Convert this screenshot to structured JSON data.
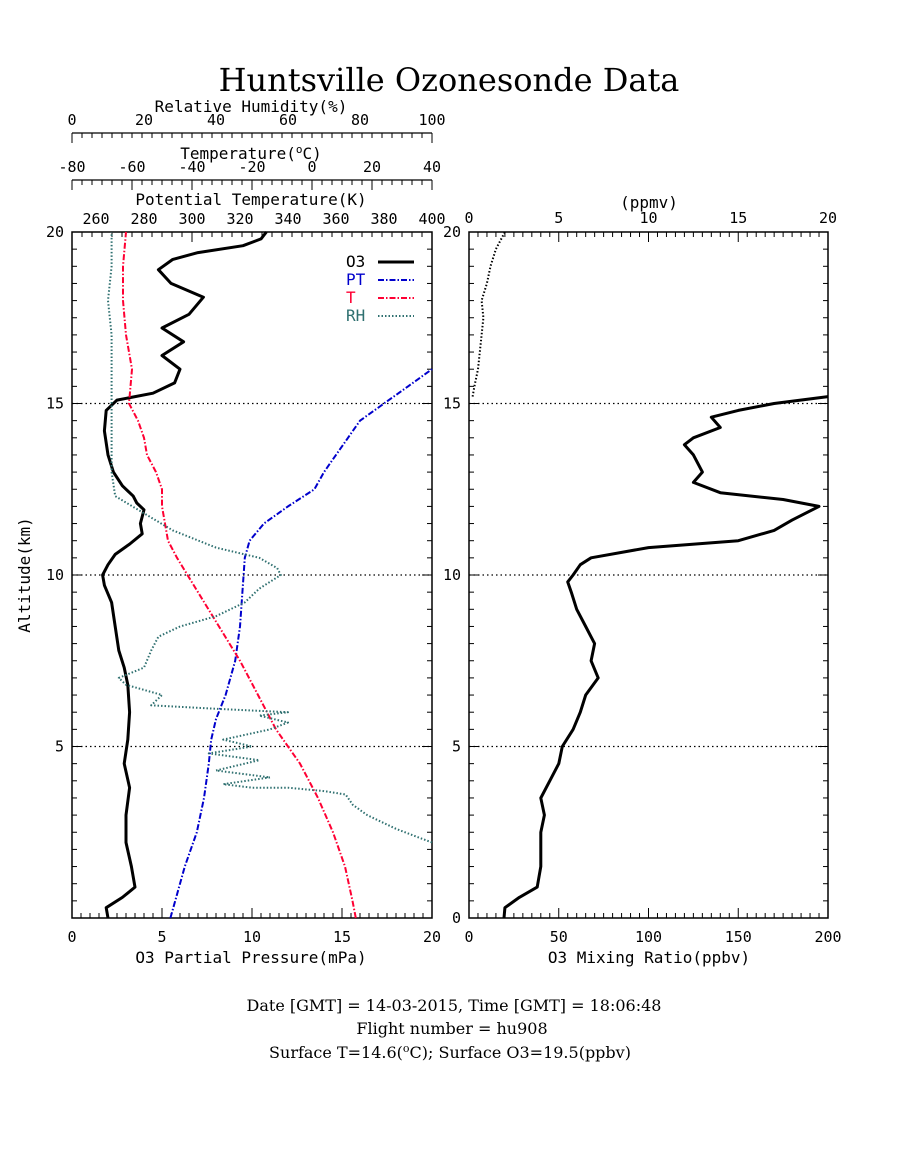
{
  "chart_data": [
    {
      "type": "line",
      "panel": "left",
      "title": "Huntsville Ozonesonde Data",
      "ylabel": "Altitude(km)",
      "ylim": [
        0,
        20
      ],
      "yticks": [
        5,
        10,
        15,
        20
      ],
      "grid": "dotted horizontal at 5, 10, 15",
      "legend_position": "top-right",
      "axes": {
        "o3": {
          "label": "O3 Partial Pressure(mPa)",
          "lim": [
            0,
            20
          ],
          "ticks": [
            0,
            5,
            10,
            15,
            20
          ]
        },
        "pt": {
          "label": "Potential Temperature(K)",
          "lim": [
            250,
            400
          ],
          "ticks": [
            260,
            280,
            300,
            320,
            340,
            360,
            380,
            400
          ]
        },
        "t": {
          "label": "Temperature(°C)",
          "label_pre": "Temperature(",
          "label_sup": "o",
          "label_post": "C)",
          "lim": [
            -80,
            40
          ],
          "ticks": [
            -80,
            -60,
            -40,
            -20,
            0,
            20,
            40
          ]
        },
        "rh": {
          "label": "Relative Humidity(%)",
          "lim": [
            0,
            100
          ],
          "ticks": [
            0,
            20,
            40,
            60,
            80,
            100
          ]
        }
      },
      "series": [
        {
          "name": "O3",
          "axis": "o3",
          "color": "#000000",
          "style": "solid",
          "points": [
            [
              2.0,
              0
            ],
            [
              1.9,
              0.3
            ],
            [
              2.8,
              0.6
            ],
            [
              3.5,
              0.9
            ],
            [
              3.3,
              1.5
            ],
            [
              3.0,
              2.2
            ],
            [
              3.0,
              3.0
            ],
            [
              3.2,
              3.8
            ],
            [
              2.9,
              4.5
            ],
            [
              3.1,
              5.2
            ],
            [
              3.2,
              6.0
            ],
            [
              3.1,
              6.8
            ],
            [
              2.9,
              7.3
            ],
            [
              2.6,
              7.8
            ],
            [
              2.4,
              8.5
            ],
            [
              2.2,
              9.2
            ],
            [
              1.8,
              9.7
            ],
            [
              1.7,
              10.0
            ],
            [
              2.0,
              10.3
            ],
            [
              2.4,
              10.6
            ],
            [
              3.2,
              10.9
            ],
            [
              3.9,
              11.2
            ],
            [
              3.8,
              11.5
            ],
            [
              4.0,
              11.9
            ],
            [
              3.6,
              12.1
            ],
            [
              3.4,
              12.3
            ],
            [
              2.8,
              12.6
            ],
            [
              2.3,
              13.0
            ],
            [
              2.0,
              13.5
            ],
            [
              1.8,
              14.2
            ],
            [
              1.9,
              14.8
            ],
            [
              2.5,
              15.1
            ],
            [
              4.5,
              15.3
            ],
            [
              5.7,
              15.6
            ],
            [
              6.0,
              16.0
            ],
            [
              5.0,
              16.4
            ],
            [
              6.2,
              16.8
            ],
            [
              5.0,
              17.2
            ],
            [
              6.5,
              17.6
            ],
            [
              7.3,
              18.1
            ],
            [
              5.5,
              18.5
            ],
            [
              4.8,
              18.9
            ],
            [
              5.6,
              19.2
            ],
            [
              7.0,
              19.4
            ],
            [
              9.5,
              19.6
            ],
            [
              10.5,
              19.8
            ],
            [
              10.8,
              20.0
            ]
          ]
        },
        {
          "name": "PT",
          "axis": "pt",
          "color": "#0000cc",
          "style": "dash-dot",
          "points": [
            [
              291,
              0
            ],
            [
              293,
              0.5
            ],
            [
              297,
              1.5
            ],
            [
              302,
              2.5
            ],
            [
              305,
              3.5
            ],
            [
              307,
              4.5
            ],
            [
              308,
              5.2
            ],
            [
              310,
              5.8
            ],
            [
              314,
              6.5
            ],
            [
              318,
              7.5
            ],
            [
              320,
              8.5
            ],
            [
              321,
              9.5
            ],
            [
              322,
              10.5
            ],
            [
              324,
              11.0
            ],
            [
              330,
              11.5
            ],
            [
              340,
              12.0
            ],
            [
              351,
              12.5
            ],
            [
              355,
              13.0
            ],
            [
              360,
              13.5
            ],
            [
              365,
              14.0
            ],
            [
              370,
              14.5
            ],
            [
              380,
              15.0
            ],
            [
              390,
              15.5
            ],
            [
              400,
              16.0
            ]
          ]
        },
        {
          "name": "T",
          "axis": "t",
          "color": "#ff0033",
          "style": "dash-dot",
          "points": [
            [
              14.6,
              0
            ],
            [
              13.5,
              0.5
            ],
            [
              11,
              1.5
            ],
            [
              7,
              2.5
            ],
            [
              2,
              3.5
            ],
            [
              -4,
              4.5
            ],
            [
              -12,
              5.5
            ],
            [
              -18,
              6.5
            ],
            [
              -24,
              7.5
            ],
            [
              -31,
              8.5
            ],
            [
              -38,
              9.5
            ],
            [
              -45,
              10.5
            ],
            [
              -48,
              11.0
            ],
            [
              -49,
              11.5
            ],
            [
              -50,
              12.0
            ],
            [
              -50,
              12.5
            ],
            [
              -52,
              13.0
            ],
            [
              -55,
              13.5
            ],
            [
              -56,
              14.0
            ],
            [
              -58,
              14.5
            ],
            [
              -61,
              15.0
            ],
            [
              -60,
              16.0
            ],
            [
              -62,
              17.0
            ],
            [
              -63,
              18.0
            ],
            [
              -63,
              19.0
            ],
            [
              -62,
              20.0
            ]
          ]
        },
        {
          "name": "RH",
          "axis": "rh",
          "color": "#2f7070",
          "style": "dotted",
          "points": [
            [
              100,
              2.2
            ],
            [
              95,
              2.4
            ],
            [
              90,
              2.6
            ],
            [
              86,
              2.8
            ],
            [
              82,
              3.0
            ],
            [
              78,
              3.3
            ],
            [
              76,
              3.6
            ],
            [
              70,
              3.7
            ],
            [
              60,
              3.8
            ],
            [
              50,
              3.8
            ],
            [
              42,
              3.9
            ],
            [
              55,
              4.1
            ],
            [
              40,
              4.3
            ],
            [
              52,
              4.6
            ],
            [
              38,
              4.8
            ],
            [
              50,
              5.0
            ],
            [
              42,
              5.2
            ],
            [
              55,
              5.5
            ],
            [
              60,
              5.7
            ],
            [
              52,
              5.9
            ],
            [
              60,
              6.0
            ],
            [
              40,
              6.1
            ],
            [
              22,
              6.2
            ],
            [
              25,
              6.5
            ],
            [
              15,
              6.8
            ],
            [
              13,
              7.0
            ],
            [
              20,
              7.3
            ],
            [
              22,
              7.8
            ],
            [
              24,
              8.2
            ],
            [
              30,
              8.5
            ],
            [
              40,
              8.8
            ],
            [
              48,
              9.2
            ],
            [
              52,
              9.6
            ],
            [
              58,
              10.0
            ],
            [
              57,
              10.2
            ],
            [
              52,
              10.5
            ],
            [
              40,
              10.8
            ],
            [
              28,
              11.3
            ],
            [
              20,
              11.8
            ],
            [
              12,
              12.3
            ],
            [
              11,
              13.0
            ],
            [
              11,
              14.0
            ],
            [
              11,
              15.0
            ],
            [
              11,
              16.0
            ],
            [
              11,
              17.0
            ],
            [
              10,
              18.0
            ],
            [
              11,
              19.0
            ],
            [
              11,
              20.0
            ]
          ]
        }
      ]
    },
    {
      "type": "line",
      "panel": "right",
      "xlabel": "O3 Mixing Ratio(ppbv)",
      "xlim": [
        0,
        200
      ],
      "xticks": [
        0,
        50,
        100,
        150,
        200
      ],
      "x2label": "(ppmv)",
      "x2lim": [
        0,
        20
      ],
      "x2ticks": [
        0,
        5,
        10,
        15,
        20
      ],
      "ylim": [
        0,
        20
      ],
      "yticks": [
        0,
        5,
        10,
        15,
        20
      ],
      "grid": "dotted horizontal at 5, 10, 15",
      "series": [
        {
          "name": "O3 mixing ratio",
          "unit": "ppbv",
          "style": "solid",
          "color": "#000000",
          "points": [
            [
              19.5,
              0
            ],
            [
              20,
              0.3
            ],
            [
              28,
              0.6
            ],
            [
              38,
              0.9
            ],
            [
              40,
              1.5
            ],
            [
              40,
              2.5
            ],
            [
              42,
              3.0
            ],
            [
              40,
              3.5
            ],
            [
              45,
              4.0
            ],
            [
              50,
              4.5
            ],
            [
              52,
              5.0
            ],
            [
              58,
              5.5
            ],
            [
              62,
              6.0
            ],
            [
              65,
              6.5
            ],
            [
              72,
              7.0
            ],
            [
              68,
              7.5
            ],
            [
              70,
              8.0
            ],
            [
              65,
              8.5
            ],
            [
              60,
              9.0
            ],
            [
              57,
              9.5
            ],
            [
              55,
              9.8
            ],
            [
              58,
              10.0
            ],
            [
              62,
              10.3
            ],
            [
              68,
              10.5
            ],
            [
              100,
              10.8
            ],
            [
              150,
              11.0
            ],
            [
              170,
              11.3
            ],
            [
              180,
              11.6
            ],
            [
              195,
              12.0
            ],
            [
              175,
              12.2
            ],
            [
              140,
              12.4
            ],
            [
              125,
              12.7
            ],
            [
              130,
              13.0
            ],
            [
              125,
              13.5
            ],
            [
              120,
              13.8
            ],
            [
              125,
              14.0
            ],
            [
              140,
              14.3
            ],
            [
              135,
              14.6
            ],
            [
              150,
              14.8
            ],
            [
              170,
              15.0
            ],
            [
              200,
              15.2
            ]
          ]
        },
        {
          "name": "O3 mixing ratio above tropopause",
          "unit": "ppmv",
          "style": "dotted",
          "color": "#000000",
          "points": [
            [
              0.2,
              15.2
            ],
            [
              0.3,
              15.5
            ],
            [
              0.5,
              16.0
            ],
            [
              0.6,
              16.5
            ],
            [
              0.7,
              17.0
            ],
            [
              0.8,
              17.5
            ],
            [
              0.7,
              18.0
            ],
            [
              1.0,
              18.5
            ],
            [
              1.2,
              19.0
            ],
            [
              1.5,
              19.5
            ],
            [
              2.0,
              20.0
            ]
          ]
        }
      ]
    }
  ],
  "legend": [
    "O3",
    "PT",
    "T",
    "RH"
  ],
  "footer": {
    "line1": "Date [GMT] = 14-03-2015,  Time [GMT] = 18:06:48",
    "line2": "Flight number = hu908",
    "line3_pre": "Surface T=14.6(",
    "line3_sup": "o",
    "line3_post": "C); Surface O3=19.5(ppbv)"
  }
}
